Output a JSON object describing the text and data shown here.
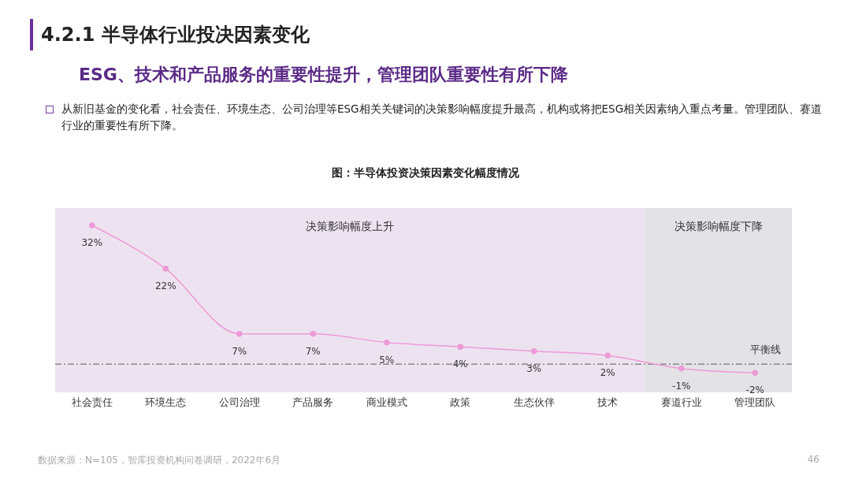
{
  "chart_data": {
    "type": "line",
    "title": "图：半导体投资决策因素变化幅度情况",
    "annotations": [
      "4.2.1 半导体行业投决因素变化",
      "ESG、技术和产品服务的重要性提升，管理团队重要性有所下降",
      "从新旧基金的变化看，社会责任、环境生态、公司治理等ESG相关关键词的决策影响幅度提升最高，机构或将把ESG相关因素纳入重点考量。管理团队、赛道行业的重要性有所下降。",
      "数据来源：N=105，智库投资机构问卷调研，2022年6月",
      "46"
    ],
    "categories": [
      "社会责任",
      "环境生态",
      "公司治理",
      "产品服务",
      "商业模式",
      "政策",
      "生态伙伴",
      "技术",
      "赛道行业",
      "管理团队"
    ],
    "series": [
      {
        "color": "#ee9ad8",
        "values": [
          32,
          22,
          7,
          7,
          5,
          4,
          3,
          2,
          -1,
          -2
        ],
        "value_labels": [
          "32%",
          "22%",
          "7%",
          "7%",
          "5%",
          "4%",
          "3%",
          "2%",
          "-1%",
          "-2%"
        ]
      }
    ],
    "ref_lines": [
      {
        "axis": "y",
        "value": 0,
        "label": "平衡线",
        "color": "#888888",
        "line_style": "dashdot"
      }
    ],
    "bands": [
      {
        "axis": "x",
        "from": "社会责任",
        "to": "技术",
        "label": "决策影响幅度上升",
        "color": "#ede3f0"
      },
      {
        "axis": "x",
        "from": "赛道行业",
        "to": "管理团队",
        "label": "决策影响幅度下降",
        "color": "#e3e3e6"
      }
    ],
    "tick_labels": "x",
    "marker": "circle",
    "line_style": "solid"
  }
}
